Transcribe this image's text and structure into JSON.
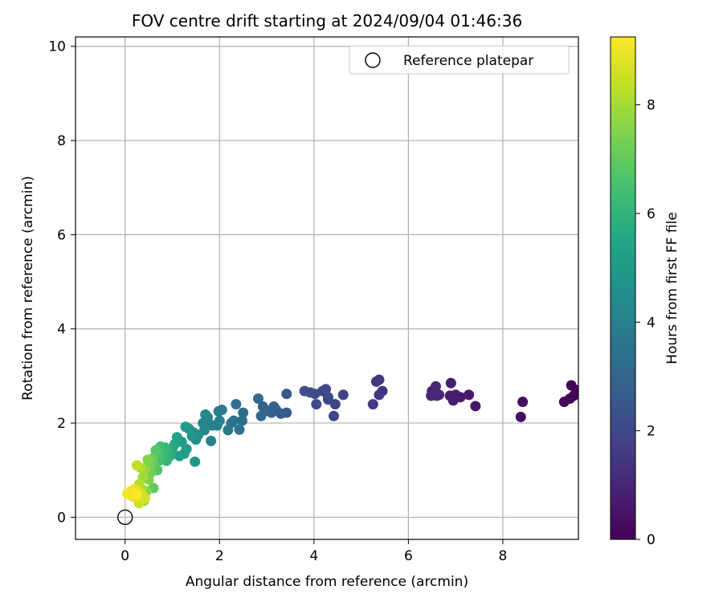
{
  "chart_data": {
    "type": "scatter",
    "title": "FOV centre drift starting at 2024/09/04 01:46:36",
    "xlabel": "Angular distance from reference (arcmin)",
    "ylabel": "Rotation from reference (arcmin)",
    "xlim": [
      -1.05,
      9.6
    ],
    "ylim": [
      -0.47,
      10.2
    ],
    "xticks": [
      0,
      2,
      4,
      6,
      8
    ],
    "yticks": [
      0,
      2,
      4,
      6,
      8,
      10
    ],
    "grid": true,
    "legend": {
      "placement": "top-right",
      "entries": [
        "Reference platepar"
      ]
    },
    "colorbar": {
      "label": "Hours from first FF file",
      "min": 0,
      "max": 9.25,
      "ticks": [
        0,
        2,
        4,
        6,
        8
      ],
      "colormap": "viridis"
    },
    "reference_point": {
      "x": 0,
      "y": 0
    },
    "points": [
      [
        9.45,
        2.8,
        0.05
      ],
      [
        9.55,
        2.7,
        0.08
      ],
      [
        9.42,
        2.52,
        0.1
      ],
      [
        9.5,
        2.58,
        0.12
      ],
      [
        9.3,
        2.45,
        0.15
      ],
      [
        9.6,
        2.62,
        0.1
      ],
      [
        8.42,
        2.45,
        0.3
      ],
      [
        8.38,
        2.13,
        0.35
      ],
      [
        7.42,
        2.36,
        0.6
      ],
      [
        7.28,
        2.6,
        0.65
      ],
      [
        7.1,
        2.55,
        0.7
      ],
      [
        6.95,
        2.48,
        0.72
      ],
      [
        6.9,
        2.85,
        0.75
      ],
      [
        7.0,
        2.6,
        0.78
      ],
      [
        6.88,
        2.58,
        0.8
      ],
      [
        6.6,
        2.58,
        0.9
      ],
      [
        6.5,
        2.68,
        0.95
      ],
      [
        6.58,
        2.78,
        0.98
      ],
      [
        6.48,
        2.58,
        1.0
      ],
      [
        6.65,
        2.6,
        1.02
      ],
      [
        5.45,
        2.68,
        1.4
      ],
      [
        5.38,
        2.92,
        1.45
      ],
      [
        5.32,
        2.88,
        1.5
      ],
      [
        5.38,
        2.6,
        1.52
      ],
      [
        5.25,
        2.4,
        1.55
      ],
      [
        4.62,
        2.6,
        1.8
      ],
      [
        4.45,
        2.4,
        1.85
      ],
      [
        4.42,
        2.15,
        1.9
      ],
      [
        4.3,
        2.5,
        1.95
      ],
      [
        4.25,
        2.72,
        1.98
      ],
      [
        4.3,
        2.55,
        2.0
      ],
      [
        4.18,
        2.68,
        2.02
      ],
      [
        4.05,
        2.4,
        2.1
      ],
      [
        4.02,
        2.62,
        2.15
      ],
      [
        3.92,
        2.65,
        2.2
      ],
      [
        3.8,
        2.68,
        2.25
      ],
      [
        3.42,
        2.62,
        2.6
      ],
      [
        3.42,
        2.22,
        2.65
      ],
      [
        3.3,
        2.2,
        2.7
      ],
      [
        3.2,
        2.28,
        2.75
      ],
      [
        3.15,
        2.35,
        2.8
      ],
      [
        3.1,
        2.22,
        2.85
      ],
      [
        3.05,
        2.25,
        2.88
      ],
      [
        2.92,
        2.35,
        3.0
      ],
      [
        2.88,
        2.15,
        3.05
      ],
      [
        2.82,
        2.52,
        3.1
      ],
      [
        2.5,
        2.22,
        3.3
      ],
      [
        2.48,
        2.05,
        3.35
      ],
      [
        2.42,
        1.86,
        3.4
      ],
      [
        2.35,
        2.4,
        3.45
      ],
      [
        2.3,
        2.05,
        3.5
      ],
      [
        2.25,
        2.0,
        3.55
      ],
      [
        2.18,
        1.85,
        3.7
      ],
      [
        2.05,
        2.28,
        3.8
      ],
      [
        1.98,
        2.25,
        3.85
      ],
      [
        1.95,
        1.95,
        3.95
      ],
      [
        2.0,
        2.05,
        4.0
      ],
      [
        1.85,
        1.95,
        4.05
      ],
      [
        1.82,
        1.62,
        4.1
      ],
      [
        1.75,
        2.12,
        4.15
      ],
      [
        1.7,
        2.18,
        4.2
      ],
      [
        1.68,
        1.85,
        4.25
      ],
      [
        1.65,
        2.0,
        4.3
      ],
      [
        1.55,
        1.75,
        4.6
      ],
      [
        1.5,
        1.65,
        4.65
      ],
      [
        1.45,
        1.8,
        4.7
      ],
      [
        1.42,
        1.72,
        4.75
      ],
      [
        1.48,
        1.18,
        4.8
      ],
      [
        1.35,
        1.88,
        4.85
      ],
      [
        1.3,
        1.45,
        5.0
      ],
      [
        1.28,
        1.92,
        5.05
      ],
      [
        1.25,
        1.35,
        5.1
      ],
      [
        1.2,
        1.6,
        5.15
      ],
      [
        1.15,
        1.3,
        5.2
      ],
      [
        1.1,
        1.7,
        5.3
      ],
      [
        1.05,
        1.55,
        5.5
      ],
      [
        1.0,
        1.45,
        5.6
      ],
      [
        0.95,
        1.3,
        5.8
      ],
      [
        0.9,
        1.42,
        5.9
      ],
      [
        0.88,
        1.2,
        6.0
      ],
      [
        0.85,
        1.48,
        6.1
      ],
      [
        0.8,
        1.35,
        6.2
      ],
      [
        0.75,
        1.5,
        6.3
      ],
      [
        0.72,
        1.2,
        6.5
      ],
      [
        0.7,
        1.35,
        6.6
      ],
      [
        0.68,
        1.0,
        6.7
      ],
      [
        0.65,
        1.42,
        6.8
      ],
      [
        0.62,
        1.1,
        6.9
      ],
      [
        0.6,
        0.62,
        7.0
      ],
      [
        0.58,
        1.25,
        7.1
      ],
      [
        0.55,
        0.95,
        7.2
      ],
      [
        0.52,
        1.1,
        7.3
      ],
      [
        0.5,
        0.8,
        7.4
      ],
      [
        0.48,
        1.22,
        7.5
      ],
      [
        0.45,
        0.55,
        7.6
      ],
      [
        0.42,
        1.0,
        7.7
      ],
      [
        0.4,
        0.35,
        7.8
      ],
      [
        0.38,
        0.85,
        7.9
      ],
      [
        0.35,
        0.6,
        8.0
      ],
      [
        0.33,
        1.05,
        8.1
      ],
      [
        0.3,
        0.7,
        8.2
      ],
      [
        0.28,
        0.45,
        8.3
      ],
      [
        0.25,
        1.1,
        8.4
      ],
      [
        0.3,
        0.3,
        8.5
      ],
      [
        0.35,
        0.5,
        8.6
      ],
      [
        0.42,
        0.4,
        8.65
      ],
      [
        0.28,
        0.55,
        8.7
      ],
      [
        0.22,
        0.42,
        8.8
      ],
      [
        0.2,
        0.6,
        8.85
      ],
      [
        0.15,
        0.45,
        8.95
      ],
      [
        0.12,
        0.55,
        9.0
      ],
      [
        0.1,
        0.48,
        9.05
      ],
      [
        0.05,
        0.5,
        9.1
      ],
      [
        0.18,
        0.52,
        9.15
      ],
      [
        0.25,
        0.48,
        9.2
      ]
    ]
  }
}
